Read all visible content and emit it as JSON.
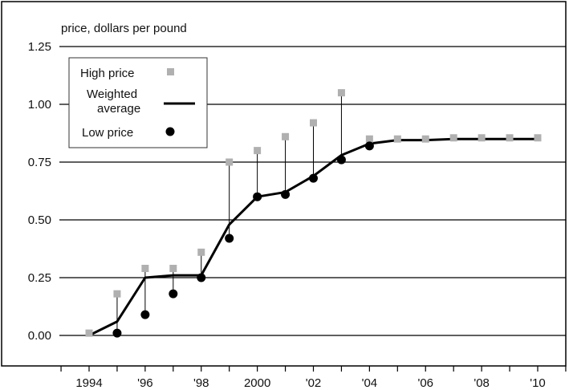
{
  "chart_data": {
    "type": "line",
    "ylabel": "price, dollars per pound",
    "x": [
      1994,
      1995,
      1996,
      1997,
      1998,
      1999,
      2000,
      2001,
      2002,
      2003,
      2004,
      2005,
      2006,
      2007,
      2008,
      2009,
      2010
    ],
    "x_ticks": [
      1994,
      1996,
      1998,
      2000,
      2002,
      2004,
      2006,
      2008,
      2010
    ],
    "x_tick_labels": [
      "1994",
      "'96",
      "'98",
      "2000",
      "'02",
      "'04",
      "'06",
      "'08",
      "'10"
    ],
    "y_ticks": [
      0,
      0.25,
      0.5,
      0.75,
      1.0,
      1.25
    ],
    "y_tick_labels": [
      "0.00",
      "0.25",
      "0.50",
      "0.75",
      "1.00",
      "1.25"
    ],
    "ylim": [
      0,
      1.25
    ],
    "xlim": [
      1993,
      2011
    ],
    "grid": "horizontal",
    "legend_position": "top-left",
    "series": [
      {
        "name": "High price",
        "kind": "marker-square",
        "values": [
          0.01,
          0.18,
          0.29,
          0.29,
          0.36,
          0.75,
          0.8,
          0.86,
          0.92,
          1.05,
          0.85,
          0.85,
          0.85,
          0.855,
          0.855,
          0.855,
          0.855
        ],
        "color": "#b0b0b0"
      },
      {
        "name": "Weighted average",
        "kind": "line",
        "values": [
          0.0,
          0.06,
          0.25,
          0.26,
          0.26,
          0.48,
          0.6,
          0.62,
          0.69,
          0.78,
          0.83,
          0.845,
          0.845,
          0.85,
          0.85,
          0.85,
          0.85
        ],
        "color": "#000000"
      },
      {
        "name": "Low price",
        "kind": "marker-circle",
        "values": [
          null,
          0.01,
          0.09,
          0.18,
          0.25,
          0.42,
          0.6,
          0.61,
          0.68,
          0.76,
          0.82,
          null,
          null,
          null,
          null,
          null,
          null
        ],
        "color": "#000000"
      }
    ],
    "range_stems": [
      1995,
      1996,
      1997,
      1998,
      1999,
      2000,
      2001,
      2002,
      2003
    ]
  }
}
